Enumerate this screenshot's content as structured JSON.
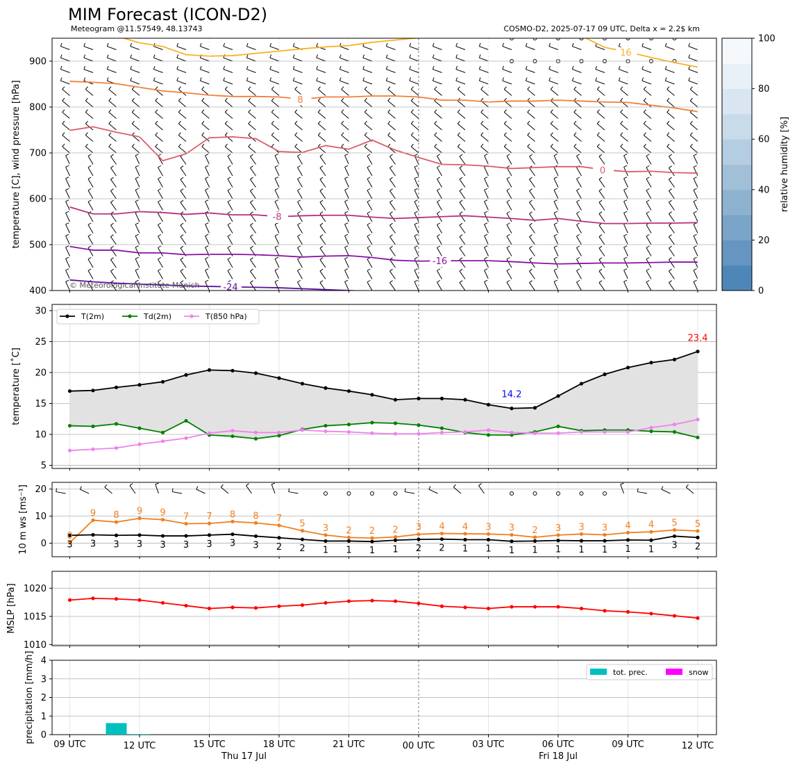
{
  "header": {
    "title": "MIM Forecast (ICON-D2)",
    "subtitle_left": "Meteogram @11.57549, 48.13743",
    "subtitle_right": "COSMO-D2, 2025-07-17 09 UTC, Delta x = 2.2$ km",
    "copyright": "© Meteorological Institute Munich"
  },
  "time_axis": {
    "times": [
      "09",
      "10",
      "11",
      "12",
      "13",
      "14",
      "15",
      "16",
      "17",
      "18",
      "19",
      "20",
      "21",
      "22",
      "23",
      "00",
      "01",
      "02",
      "03",
      "04",
      "05",
      "06",
      "07",
      "08",
      "09",
      "10",
      "11",
      "12"
    ],
    "tick_labels": [
      "09 UTC",
      "12 UTC",
      "15 UTC",
      "18 UTC",
      "21 UTC",
      "00 UTC",
      "03 UTC",
      "06 UTC",
      "09 UTC",
      "12 UTC"
    ],
    "date_labels": [
      "Thu 17 Jul",
      "Fri 18 Jul"
    ]
  },
  "chart_data": [
    {
      "id": "upper_air",
      "type": "line",
      "ylabel": "temperature [C], wind pressure [hPa]",
      "ylim": [
        950,
        400
      ],
      "yticks": [
        400,
        500,
        600,
        700,
        800,
        900
      ],
      "colorbar": {
        "label": "relative humidity [%]",
        "ticks": [
          0,
          20,
          40,
          60,
          80,
          100
        ],
        "range": [
          0,
          100
        ],
        "colors": [
          "#4f86b8",
          "#6595c0",
          "#7aa4c8",
          "#8db2d0",
          "#a1c0d8",
          "#b5cde2",
          "#c7dbea",
          "#d9e6f1",
          "#e8f0f8",
          "#f5f9fc"
        ]
      },
      "isotherms": [
        {
          "label": "-24",
          "color": "#5b0e9a",
          "values": [
            423,
            419,
            416,
            414,
            412,
            410,
            409,
            408,
            407,
            406,
            404,
            402,
            400,
            398,
            396,
            394,
            393,
            392,
            391,
            390,
            389,
            388,
            387,
            386,
            385,
            384,
            383,
            382
          ]
        },
        {
          "label": "-16",
          "color": "#8a10a6",
          "values": [
            496,
            488,
            488,
            482,
            482,
            478,
            479,
            479,
            478,
            476,
            473,
            475,
            476,
            472,
            466,
            464,
            465,
            465,
            465,
            463,
            460,
            458,
            459,
            460,
            460,
            461,
            462,
            462
          ]
        },
        {
          "label": "-8",
          "color": "#b5307e",
          "values": [
            582,
            567,
            567,
            572,
            570,
            566,
            569,
            565,
            565,
            561,
            563,
            564,
            564,
            560,
            557,
            559,
            561,
            563,
            560,
            557,
            553,
            557,
            551,
            546,
            546,
            547,
            547,
            548
          ]
        },
        {
          "label": "0",
          "color": "#db5c66",
          "values": [
            749,
            757,
            745,
            735,
            683,
            698,
            733,
            735,
            731,
            703,
            701,
            716,
            708,
            728,
            706,
            690,
            675,
            674,
            671,
            666,
            668,
            670,
            670,
            663,
            659,
            660,
            657,
            656
          ]
        },
        {
          "label": "8",
          "color": "#f07f38",
          "values": [
            856,
            854,
            851,
            843,
            835,
            831,
            826,
            823,
            823,
            822,
            817,
            822,
            822,
            824,
            824,
            822,
            815,
            815,
            811,
            813,
            813,
            815,
            813,
            811,
            810,
            804,
            798,
            790
          ]
        },
        {
          "label": "16",
          "color": "#f8b222",
          "values": [
            1000,
            978,
            955,
            940,
            932,
            914,
            911,
            912,
            917,
            922,
            927,
            931,
            934,
            941,
            946,
            951,
            967,
            980,
            985,
            990,
            995,
            980,
            955,
            930,
            920,
            908,
            897,
            887
          ]
        }
      ],
      "wind_barbs_note": "wind barbs at each time and pressure level",
      "calm_symbol": "o"
    },
    {
      "id": "temperature",
      "type": "line",
      "ylabel": "temperature [˚C]",
      "ylim": [
        4.5,
        31
      ],
      "yticks": [
        5,
        10,
        15,
        20,
        25,
        30
      ],
      "legend": [
        "T(2m)",
        "Td(2m)",
        "T(850 hPa)"
      ],
      "series": [
        {
          "name": "T(2m)",
          "color": "#000000",
          "values": [
            17.0,
            17.1,
            17.6,
            18.0,
            18.5,
            19.6,
            20.4,
            20.3,
            19.9,
            19.1,
            18.2,
            17.5,
            17.0,
            16.4,
            15.6,
            15.8,
            15.8,
            15.6,
            14.8,
            14.2,
            14.3,
            16.2,
            18.2,
            19.7,
            20.8,
            21.6,
            22.1,
            23.4
          ]
        },
        {
          "name": "Td(2m)",
          "color": "#008000",
          "values": [
            11.4,
            11.3,
            11.7,
            11.0,
            10.3,
            12.2,
            9.9,
            9.7,
            9.3,
            9.8,
            10.8,
            11.4,
            11.6,
            11.9,
            11.8,
            11.5,
            11.0,
            10.3,
            9.9,
            9.9,
            10.4,
            11.3,
            10.6,
            10.7,
            10.7,
            10.5,
            10.4,
            9.5
          ]
        },
        {
          "name": "T(850 hPa)",
          "color": "#ee82ee",
          "values": [
            7.4,
            7.6,
            7.8,
            8.4,
            8.9,
            9.4,
            10.2,
            10.6,
            10.3,
            10.3,
            10.7,
            10.5,
            10.4,
            10.2,
            10.1,
            10.1,
            10.3,
            10.4,
            10.7,
            10.3,
            10.2,
            10.2,
            10.4,
            10.4,
            10.4,
            11.1,
            11.6,
            12.4
          ]
        }
      ],
      "annotation_max": {
        "text": "23.4",
        "color": "#ff0000",
        "index": 27
      },
      "annotation_min": {
        "text": "14.2",
        "color": "#0000ff",
        "index": 19
      }
    },
    {
      "id": "wind",
      "type": "line",
      "ylabel": "10 m ws [ms⁻¹]",
      "ylim": [
        -5,
        22.5
      ],
      "yticks": [
        0,
        10,
        20
      ],
      "series": [
        {
          "name": "mean wind",
          "color": "#000000",
          "values": [
            2.9,
            3.1,
            2.9,
            3.0,
            2.7,
            2.7,
            3.0,
            3.3,
            2.6,
            2.0,
            1.4,
            0.8,
            0.8,
            0.6,
            1.1,
            1.4,
            1.5,
            1.3,
            1.3,
            0.7,
            0.8,
            1.0,
            0.9,
            0.9,
            1.2,
            1.1,
            2.6,
            2.1
          ]
        },
        {
          "name": "gust",
          "color": "#f07f20",
          "values": [
            0.2,
            8.5,
            7.8,
            9.2,
            8.7,
            7.2,
            7.3,
            8.0,
            7.5,
            6.6,
            4.6,
            3.0,
            2.1,
            1.9,
            2.3,
            3.3,
            3.6,
            3.5,
            3.4,
            3.1,
            2.2,
            3.0,
            3.4,
            3.1,
            3.9,
            4.2,
            4.9,
            4.5
          ]
        }
      ],
      "mean_labels": [
        "3",
        "3",
        "3",
        "3",
        "3",
        "3",
        "3",
        "3",
        "3",
        "2",
        "2",
        "1",
        "1",
        "1",
        "1",
        "2",
        "2",
        "1",
        "1",
        "1",
        "1",
        "1",
        "1",
        "1",
        "1",
        "1",
        "3",
        "2"
      ],
      "gust_labels": [
        "0",
        "9",
        "8",
        "9",
        "9",
        "7",
        "7",
        "8",
        "8",
        "7",
        "5",
        "3",
        "2",
        "2",
        "2",
        "3",
        "4",
        "4",
        "3",
        "3",
        "2",
        "3",
        "3",
        "3",
        "4",
        "4",
        "5",
        "5"
      ],
      "barbs": [
        "b",
        "b",
        "b",
        "b",
        "b",
        "b",
        "b",
        "b",
        "b",
        "b",
        "b",
        "o",
        "o",
        "o",
        "o",
        "b",
        "b",
        "b",
        "b",
        "o",
        "o",
        "o",
        "o",
        "o",
        "b",
        "b",
        "b",
        "b"
      ]
    },
    {
      "id": "mslp",
      "type": "line",
      "ylabel": "MSLP [hPa]",
      "ylim": [
        1009.8,
        1023
      ],
      "yticks": [
        1010,
        1015,
        1020
      ],
      "series": [
        {
          "name": "MSLP",
          "color": "#ff0000",
          "values": [
            1017.9,
            1018.2,
            1018.1,
            1017.9,
            1017.4,
            1016.9,
            1016.4,
            1016.6,
            1016.5,
            1016.8,
            1017.0,
            1017.4,
            1017.7,
            1017.8,
            1017.7,
            1017.3,
            1016.8,
            1016.6,
            1016.4,
            1016.7,
            1016.7,
            1016.7,
            1016.4,
            1016.0,
            1015.8,
            1015.5,
            1015.1,
            1014.7
          ]
        }
      ]
    },
    {
      "id": "precipitation",
      "type": "bar",
      "ylabel": "precipitation [mm/h]",
      "ylim": [
        0,
        4
      ],
      "yticks": [
        0,
        1,
        2,
        3,
        4
      ],
      "legend": [
        "tot. prec.",
        "snow"
      ],
      "series": [
        {
          "name": "tot. prec.",
          "color": "#00bfbf",
          "values": [
            0,
            0,
            0.62,
            0.03,
            0,
            0,
            0,
            0,
            0,
            0,
            0,
            0,
            0,
            0,
            0,
            0,
            0,
            0,
            0,
            0,
            0,
            0,
            0,
            0,
            0,
            0,
            0,
            0
          ]
        },
        {
          "name": "snow",
          "color": "#ff00ff",
          "values": [
            0,
            0,
            0,
            0,
            0,
            0,
            0,
            0,
            0,
            0,
            0,
            0,
            0,
            0,
            0,
            0,
            0,
            0,
            0,
            0,
            0,
            0,
            0,
            0,
            0,
            0,
            0,
            0
          ]
        }
      ]
    }
  ]
}
